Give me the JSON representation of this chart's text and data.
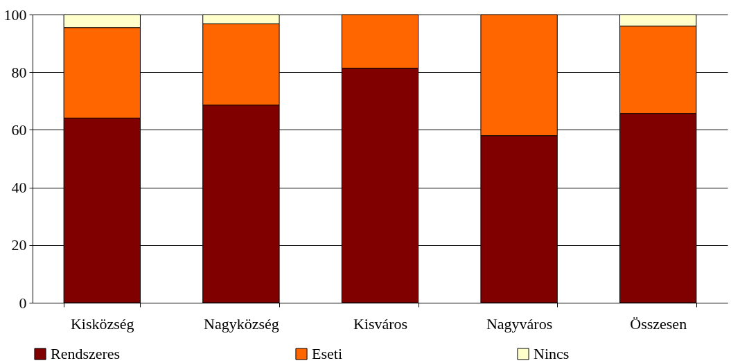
{
  "chart_data": {
    "type": "bar",
    "stacked": true,
    "categories": [
      "Kisközség",
      "Nagyközség",
      "Kisváros",
      "Nagyváros",
      "Összesen"
    ],
    "series": [
      {
        "name": "Rendszeres",
        "color": "#800000",
        "values": [
          64.1,
          68.6,
          81.4,
          58.0,
          65.7
        ]
      },
      {
        "name": "Eseti",
        "color": "#ff6600",
        "values": [
          31.4,
          28.2,
          18.6,
          42.0,
          30.3
        ]
      },
      {
        "name": "Nincs",
        "color": "#ffffcc",
        "values": [
          4.5,
          3.2,
          null,
          null,
          4.0
        ]
      }
    ],
    "ylim": [
      0,
      100
    ],
    "yticks": [
      0,
      20,
      40,
      60,
      80,
      100
    ],
    "grid": "y",
    "legend": "bottom"
  }
}
